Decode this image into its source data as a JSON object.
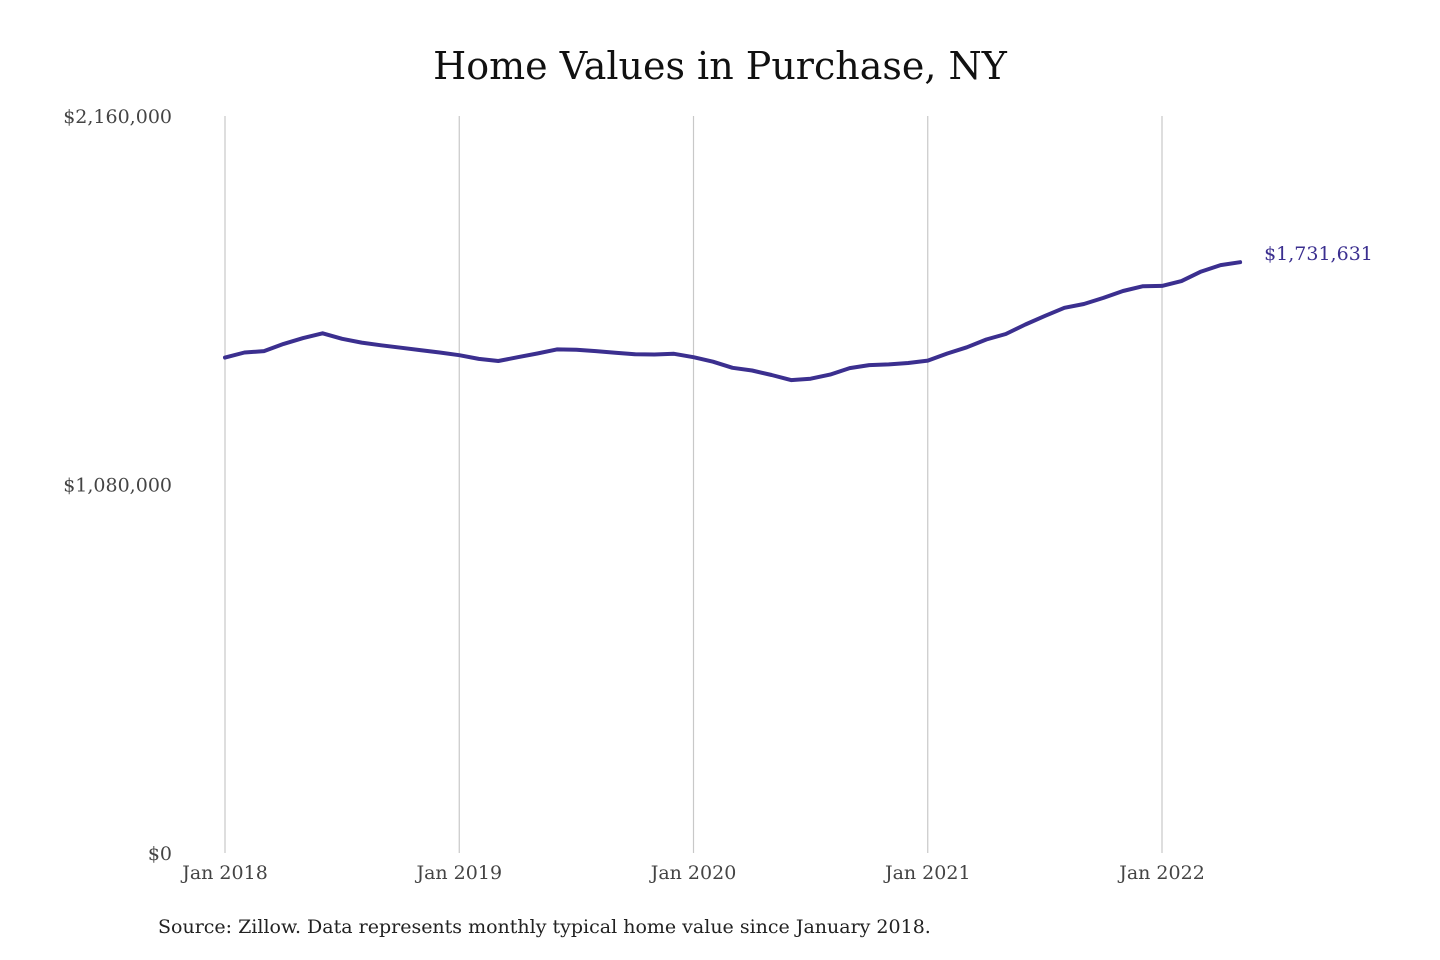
{
  "chart_data": {
    "type": "line",
    "title": "Home Values in Purchase, NY",
    "xlabel": "",
    "ylabel": "",
    "ylim": [
      0,
      2160000
    ],
    "y_ticks": [
      {
        "value": 0,
        "label": "$0"
      },
      {
        "value": 1080000,
        "label": "$1,080,000"
      },
      {
        "value": 2160000,
        "label": "$2,160,000"
      }
    ],
    "x_ticks": [
      {
        "value": "2018-01",
        "label": "Jan 2018"
      },
      {
        "value": "2019-01",
        "label": "Jan 2019"
      },
      {
        "value": "2020-01",
        "label": "Jan 2020"
      },
      {
        "value": "2021-01",
        "label": "Jan 2021"
      },
      {
        "value": "2022-01",
        "label": "Jan 2022"
      }
    ],
    "x_range": [
      "2018-01",
      "2022-05"
    ],
    "grid": {
      "vertical": true,
      "horizontal": false
    },
    "legend": "none",
    "colors": {
      "line": "#3b2f8f",
      "grid": "#c8c8c8"
    },
    "end_label": "$1,731,631",
    "series": [
      {
        "x": [
          "2018-01",
          "2018-02",
          "2018-03",
          "2018-04",
          "2018-05",
          "2018-06",
          "2018-07",
          "2018-08",
          "2018-09",
          "2018-10",
          "2018-11",
          "2018-12",
          "2019-01",
          "2019-02",
          "2019-03",
          "2019-04",
          "2019-05",
          "2019-06",
          "2019-07",
          "2019-08",
          "2019-09",
          "2019-10",
          "2019-11",
          "2019-12",
          "2020-01",
          "2020-02",
          "2020-03",
          "2020-04",
          "2020-05",
          "2020-06",
          "2020-07",
          "2020-08",
          "2020-09",
          "2020-10",
          "2020-11",
          "2020-12",
          "2021-01",
          "2021-02",
          "2021-03",
          "2021-04",
          "2021-05",
          "2021-06",
          "2021-07",
          "2021-08",
          "2021-09",
          "2021-10",
          "2021-11",
          "2021-12",
          "2022-01",
          "2022-02",
          "2022-03",
          "2022-04",
          "2022-05"
        ],
        "values": [
          1452000,
          1467000,
          1471000,
          1492000,
          1509000,
          1523000,
          1507000,
          1496000,
          1488000,
          1481000,
          1474000,
          1467000,
          1459000,
          1448000,
          1442000,
          1453000,
          1464000,
          1476000,
          1475000,
          1471000,
          1466000,
          1462000,
          1461000,
          1463000,
          1453000,
          1440000,
          1422000,
          1414000,
          1401000,
          1386000,
          1390000,
          1402000,
          1421000,
          1430000,
          1432000,
          1436000,
          1443000,
          1464000,
          1482000,
          1505000,
          1521000,
          1549000,
          1574000,
          1598000,
          1609000,
          1627000,
          1647000,
          1661000,
          1662000,
          1676000,
          1704000,
          1723000,
          1731631
        ]
      }
    ]
  },
  "source_note": "Source: Zillow. Data represents monthly typical home value since January 2018."
}
